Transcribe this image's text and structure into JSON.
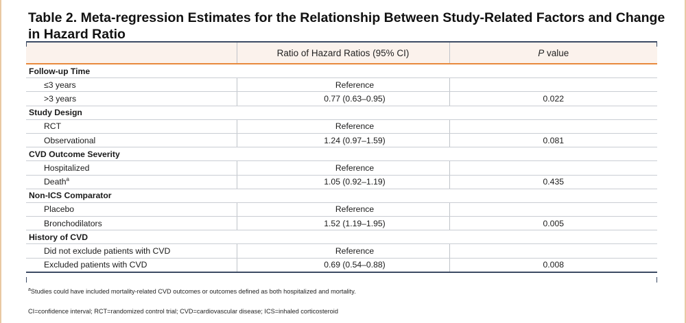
{
  "title": "Table 2. Meta-regression Estimates for the Relationship Between Study-Related Factors and Change in Hazard Ratio",
  "columns": {
    "factor": "",
    "ratio": "Ratio of Hazard Ratios (95% CI)",
    "p_italic": "P",
    "p_rest": " value"
  },
  "groups": [
    {
      "name": "Follow-up Time",
      "rows": [
        {
          "label": "≤3 years",
          "sup": "",
          "ratio": "Reference",
          "p": ""
        },
        {
          "label": ">3 years",
          "sup": "",
          "ratio": "0.77 (0.63–0.95)",
          "p": "0.022"
        }
      ]
    },
    {
      "name": "Study Design",
      "rows": [
        {
          "label": "RCT",
          "sup": "",
          "ratio": "Reference",
          "p": ""
        },
        {
          "label": "Observational",
          "sup": "",
          "ratio": "1.24 (0.97–1.59)",
          "p": "0.081"
        }
      ]
    },
    {
      "name": "CVD Outcome Severity",
      "rows": [
        {
          "label": "Hospitalized",
          "sup": "",
          "ratio": "Reference",
          "p": ""
        },
        {
          "label": "Death",
          "sup": "a",
          "ratio": "1.05 (0.92–1.19)",
          "p": "0.435"
        }
      ]
    },
    {
      "name": "Non-ICS Comparator",
      "rows": [
        {
          "label": "Placebo",
          "sup": "",
          "ratio": "Reference",
          "p": ""
        },
        {
          "label": "Bronchodilators",
          "sup": "",
          "ratio": "1.52 (1.19–1.95)",
          "p": "0.005"
        }
      ]
    },
    {
      "name": "History of CVD",
      "rows": [
        {
          "label": "Did not exclude patients with CVD",
          "sup": "",
          "ratio": "Reference",
          "p": ""
        },
        {
          "label": "Excluded patients with CVD",
          "sup": "",
          "ratio": "0.69 (0.54–0.88)",
          "p": "0.008"
        }
      ]
    }
  ],
  "footnotes": {
    "a_marker": "a",
    "a_text": "Studies could have included mortality-related CVD outcomes or outcomes defined as both hospitalized and mortality.",
    "abbrev": "CI=confidence interval; RCT=randomized control trial; CVD=cardiovascular disease; ICS=inhaled corticosteroid"
  },
  "colors": {
    "rule_dark": "#3b4a63",
    "rule_accent": "#e8893c",
    "header_bg": "#fbf2ec",
    "frame": "#e9c9a3"
  }
}
